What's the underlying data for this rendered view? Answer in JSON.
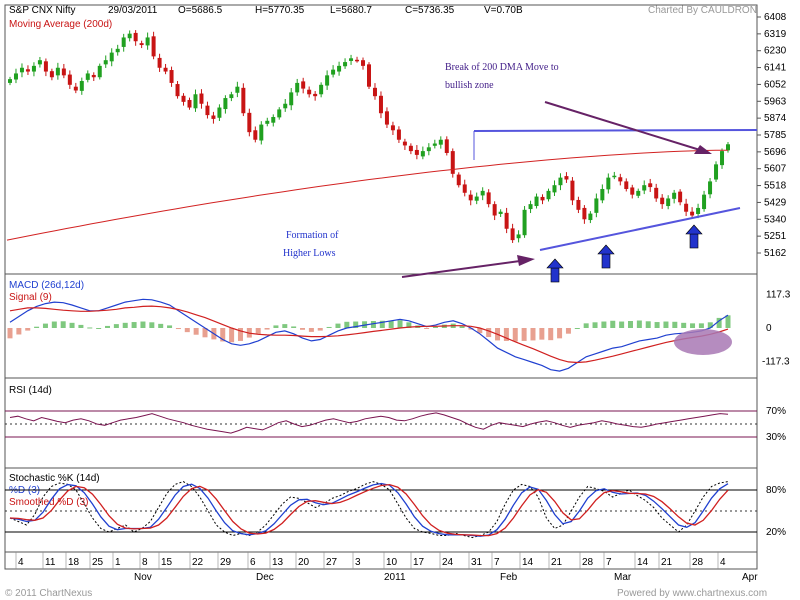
{
  "header": {
    "symbol": "S&P CNX Nifty",
    "date": "29/03/2011",
    "open": "O=5686.5",
    "high": "H=5770.35",
    "low": "L=5680.7",
    "close": "C=5736.35",
    "volume": "V=0.70B",
    "charted_by": "Charted By CAULDRON"
  },
  "footer": {
    "copyright": "© 2011 ChartNexus",
    "powered": "Powered by www.chartnexus.com"
  },
  "chart_data": [
    {
      "type": "candlestick",
      "panel": "price",
      "legend": [
        "Moving Average (200d)"
      ],
      "y_ticks": [
        "6408",
        "6319",
        "6230",
        "6141",
        "6052",
        "5963",
        "5874",
        "5785",
        "5696",
        "5607",
        "5518",
        "5429",
        "5340",
        "5251",
        "5162"
      ],
      "ylim": [
        5120,
        6420
      ],
      "closes": [
        6080,
        6110,
        6140,
        6120,
        6150,
        6180,
        6120,
        6090,
        6140,
        6100,
        6050,
        6020,
        6070,
        6110,
        6090,
        6150,
        6180,
        6220,
        6240,
        6300,
        6320,
        6280,
        6260,
        6300,
        6200,
        6140,
        6120,
        6060,
        5990,
        5960,
        5930,
        6000,
        5950,
        5890,
        5870,
        5930,
        5980,
        6000,
        6040,
        5900,
        5800,
        5760,
        5840,
        5860,
        5880,
        5920,
        5950,
        6010,
        6060,
        6030,
        6000,
        5990,
        6050,
        6100,
        6130,
        6150,
        6170,
        6190,
        6180,
        6150,
        6040,
        5990,
        5900,
        5840,
        5810,
        5760,
        5730,
        5700,
        5680,
        5700,
        5720,
        5740,
        5760,
        5690,
        5580,
        5520,
        5480,
        5440,
        5460,
        5490,
        5420,
        5360,
        5380,
        5290,
        5230,
        5260,
        5390,
        5420,
        5460,
        5440,
        5490,
        5520,
        5560,
        5550,
        5440,
        5390,
        5340,
        5370,
        5450,
        5500,
        5560,
        5570,
        5540,
        5500,
        5470,
        5490,
        5520,
        5510,
        5450,
        5420,
        5450,
        5480,
        5430,
        5380,
        5360,
        5400,
        5470,
        5540,
        5630,
        5700,
        5736
      ],
      "moving_average_200d": {
        "start": 5230,
        "end": 5705
      },
      "annotations": [
        "Break of 200 DMA Move to",
        "bullish zone",
        "Formation of",
        "Higher Lows"
      ]
    },
    {
      "type": "line+bar",
      "panel": "macd",
      "legend": [
        "MACD (26d,12d)",
        "Signal (9)"
      ],
      "y_ticks": [
        "117.3",
        "0",
        "-117.3"
      ],
      "ylim": [
        -160,
        160
      ],
      "macd": [
        20,
        40,
        60,
        75,
        85,
        90,
        88,
        80,
        70,
        60,
        60,
        70,
        80,
        90,
        95,
        100,
        98,
        90,
        80,
        60,
        40,
        20,
        0,
        -20,
        -40,
        -55,
        -60,
        -55,
        -45,
        -30,
        -15,
        -10,
        -20,
        -35,
        -45,
        -40,
        -25,
        -10,
        0,
        5,
        10,
        15,
        20,
        25,
        30,
        25,
        15,
        5,
        10,
        20,
        25,
        15,
        0,
        -20,
        -45,
        -70,
        -85,
        -100,
        -110,
        -120,
        -130,
        -145,
        -150,
        -140,
        -120,
        -100,
        -90,
        -80,
        -70,
        -65,
        -55,
        -45,
        -40,
        -35,
        -25,
        -20,
        -18,
        -15,
        -10,
        0,
        25,
        45
      ],
      "signal": [
        60,
        65,
        70,
        70,
        68,
        65,
        62,
        60,
        58,
        58,
        60,
        62,
        65,
        70,
        72,
        75,
        76,
        74,
        70,
        64,
        56,
        46,
        36,
        24,
        12,
        0,
        -10,
        -18,
        -22,
        -24,
        -25,
        -25,
        -26,
        -28,
        -30,
        -30,
        -29,
        -27,
        -24,
        -20,
        -16,
        -12,
        -8,
        -4,
        0,
        3,
        5,
        6,
        6,
        7,
        8,
        8,
        6,
        0,
        -10,
        -22,
        -35,
        -48,
        -60,
        -72,
        -85,
        -98,
        -110,
        -118,
        -120,
        -118,
        -112,
        -105,
        -98,
        -90,
        -82,
        -74,
        -66,
        -58,
        -50,
        -44,
        -38,
        -33,
        -28,
        -22,
        -14,
        -4
      ],
      "histogram_note": "MACD minus Signal"
    },
    {
      "type": "line",
      "panel": "rsi",
      "legend": [
        "RSI (14d)"
      ],
      "y_ticks": [
        "70%",
        "30%"
      ],
      "ylim": [
        0,
        100
      ],
      "rsi": [
        60,
        62,
        58,
        55,
        60,
        57,
        54,
        52,
        56,
        58,
        55,
        50,
        48,
        52,
        56,
        58,
        60,
        63,
        66,
        62,
        58,
        55,
        52,
        48,
        45,
        42,
        40,
        38,
        36,
        40,
        45,
        43,
        41,
        46,
        52,
        55,
        50,
        46,
        48,
        52,
        56,
        58,
        55,
        52,
        54,
        58,
        60,
        62,
        60,
        56,
        55,
        58,
        62,
        65,
        67,
        64,
        60,
        56,
        50,
        45,
        42,
        48,
        52,
        50,
        48,
        46,
        50,
        53,
        55,
        52,
        48,
        45,
        48,
        50,
        52,
        55,
        53,
        50,
        48,
        46,
        45,
        47,
        50,
        52,
        54,
        56,
        58,
        60,
        62,
        64,
        66,
        65
      ]
    },
    {
      "type": "line",
      "panel": "stochastic",
      "legend": [
        "Stochastic %K (14d)",
        "%D (3)",
        "Smoothed %D (3)"
      ],
      "y_ticks": [
        "80%",
        "20%"
      ],
      "ylim": [
        0,
        100
      ],
      "k": [
        40,
        35,
        30,
        45,
        70,
        85,
        90,
        88,
        80,
        60,
        40,
        25,
        20,
        25,
        30,
        20,
        25,
        35,
        55,
        75,
        88,
        92,
        85,
        70,
        50,
        30,
        20,
        15,
        18,
        15,
        20,
        30,
        45,
        60,
        70,
        68,
        62,
        55,
        60,
        68,
        72,
        78,
        82,
        88,
        92,
        88,
        80,
        60,
        40,
        25,
        20,
        18,
        15,
        15,
        18,
        15,
        12,
        15,
        20,
        35,
        60,
        80,
        88,
        85,
        70,
        40,
        25,
        30,
        50,
        70,
        85,
        82,
        78,
        70,
        75,
        80,
        72,
        65,
        55,
        40,
        30,
        20,
        30,
        50,
        70,
        85,
        90,
        92
      ],
      "x_ticks": [
        "4",
        "11",
        "18",
        "25",
        "1",
        "8",
        "15",
        "22",
        "29",
        "6",
        "13",
        "20",
        "27",
        "3",
        "10",
        "17",
        "24",
        "31",
        "7",
        "14",
        "21",
        "28",
        "7",
        "14",
        "21",
        "28",
        "4"
      ],
      "month_labels": [
        "Nov",
        "Dec",
        "2011",
        "Feb",
        "Mar",
        "Apr"
      ]
    }
  ],
  "colors": {
    "candle_up": "#20a020",
    "candle_down": "#c81414",
    "ma": "#d22222",
    "macd": "#2040d0",
    "signal": "#d02020",
    "rsi": "#7a1450",
    "trend": "#5555dd",
    "arrow": "#662266",
    "up_arrow": "#2233cc",
    "ellipse": "#a878b4"
  }
}
